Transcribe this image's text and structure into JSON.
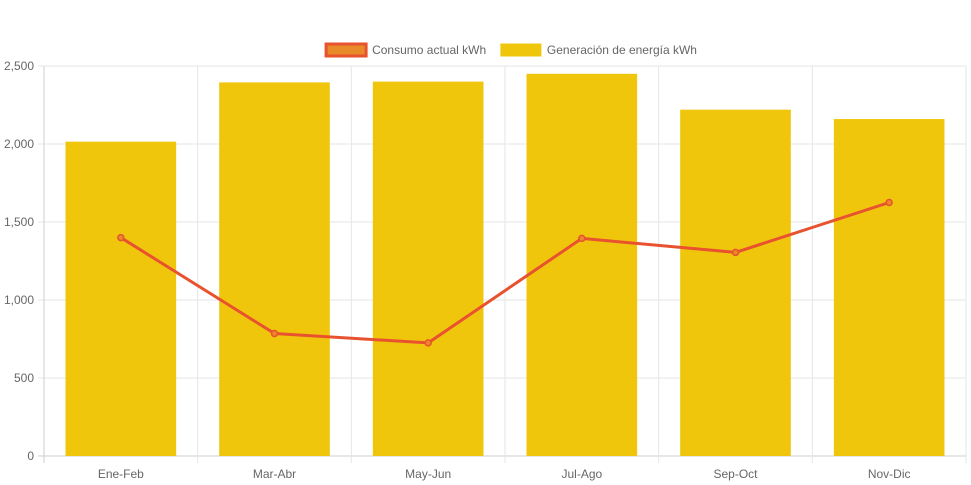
{
  "chart_data": {
    "type": "bar",
    "categories": [
      "Ene-Feb",
      "Mar-Abr",
      "May-Jun",
      "Jul-Ago",
      "Sep-Oct",
      "Nov-Dic"
    ],
    "series": [
      {
        "name": "Consumo actual kWh",
        "type": "line",
        "values": [
          1400,
          785,
          725,
          1395,
          1305,
          1625
        ],
        "color": "#e8522f",
        "fill": "#e88a2a"
      },
      {
        "name": "Generación de energía kWh",
        "type": "bar",
        "values": [
          2015,
          2395,
          2400,
          2450,
          2220,
          2160
        ],
        "color": "#f0c60d"
      }
    ],
    "ylim": [
      0,
      2500
    ],
    "yticks": [
      0,
      500,
      1000,
      1500,
      2000,
      2500
    ],
    "ytick_labels": [
      "0",
      "500",
      "1,000",
      "1,500",
      "2,000",
      "2,500"
    ],
    "grid": true,
    "legend_position": "top",
    "title": "",
    "xlabel": "",
    "ylabel": ""
  }
}
